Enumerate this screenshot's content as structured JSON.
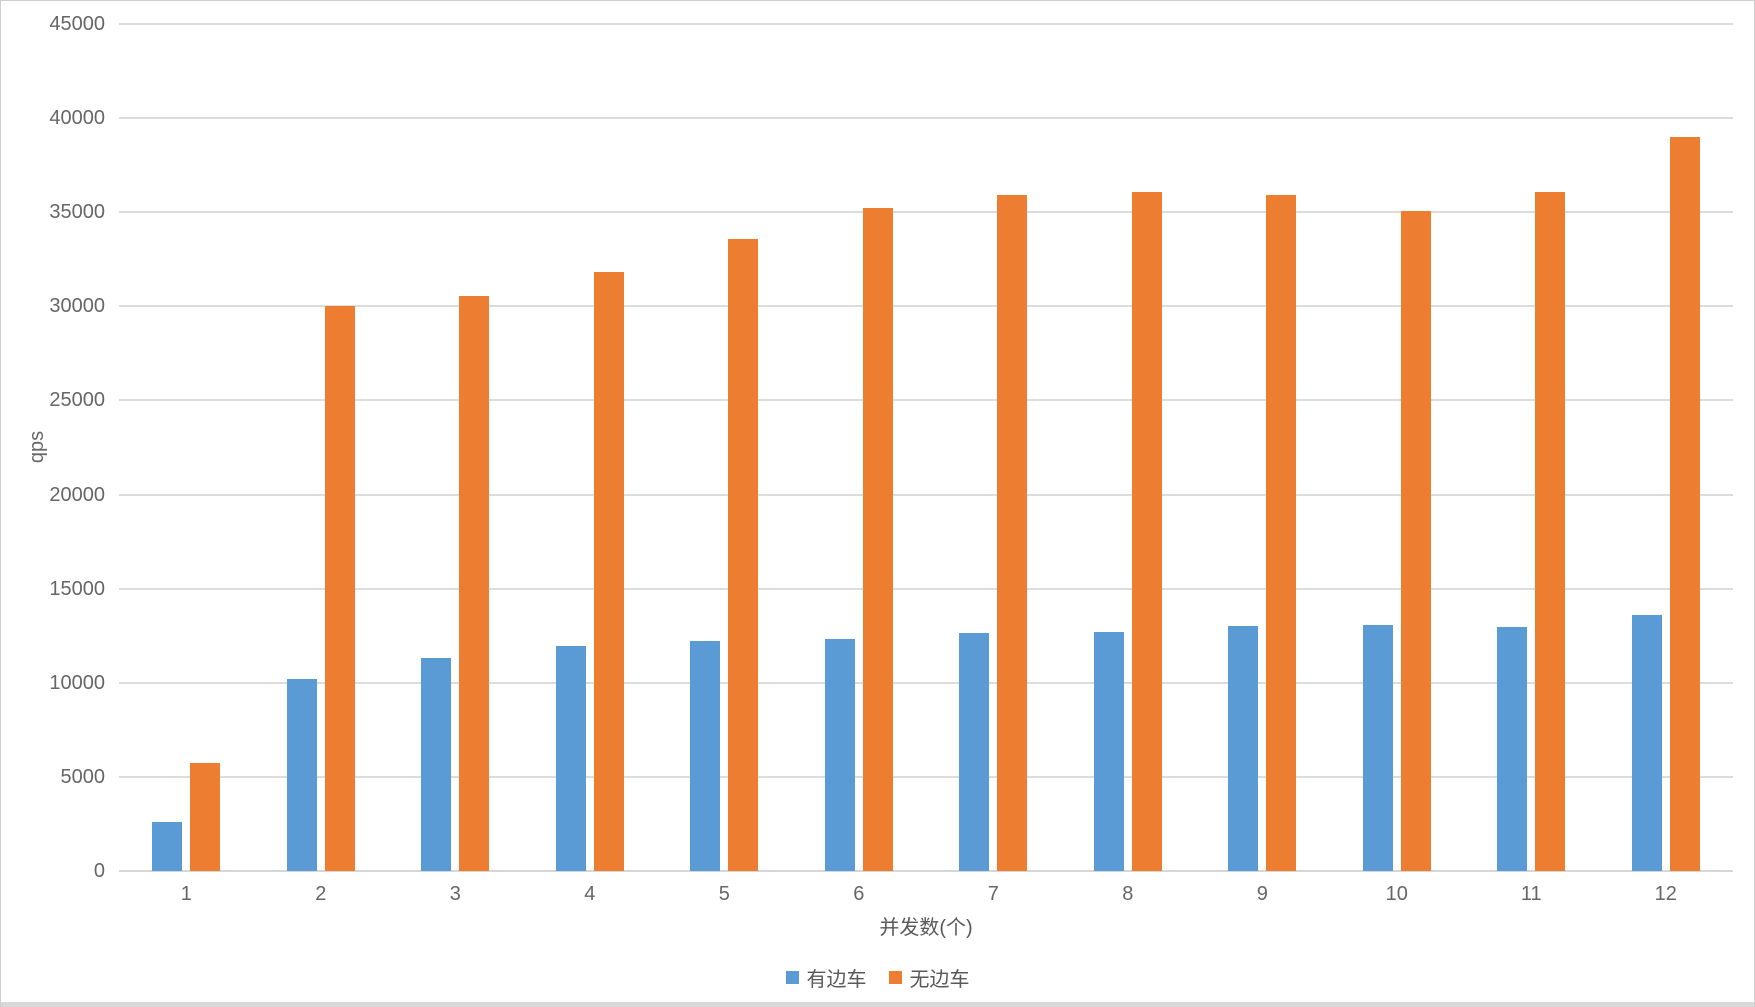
{
  "chart_data": {
    "type": "bar",
    "title": "",
    "xlabel": "并发数(个)",
    "ylabel": "qps",
    "ylim": [
      0,
      45000
    ],
    "ytick_step": 5000,
    "yticks": [
      0,
      5000,
      10000,
      15000,
      20000,
      25000,
      30000,
      35000,
      40000,
      45000
    ],
    "grid": true,
    "legend_position": "bottom",
    "categories": [
      "1",
      "2",
      "3",
      "4",
      "5",
      "6",
      "7",
      "8",
      "9",
      "10",
      "11",
      "12"
    ],
    "series": [
      {
        "name": "有边车",
        "color": "#5B9BD5",
        "values": [
          2600,
          10200,
          11300,
          11950,
          12200,
          12350,
          12650,
          12700,
          13000,
          13050,
          12950,
          13600
        ]
      },
      {
        "name": "无边车",
        "color": "#ED7D31",
        "values": [
          5750,
          30000,
          30550,
          31850,
          33600,
          35250,
          35900,
          36050,
          35900,
          35050,
          36100,
          39000
        ]
      }
    ]
  },
  "colors": {
    "gridline": "#dcdcdc",
    "axis_text": "#666666",
    "border": "#cfcfcf",
    "bottom_strip": "#d9d9d9"
  }
}
